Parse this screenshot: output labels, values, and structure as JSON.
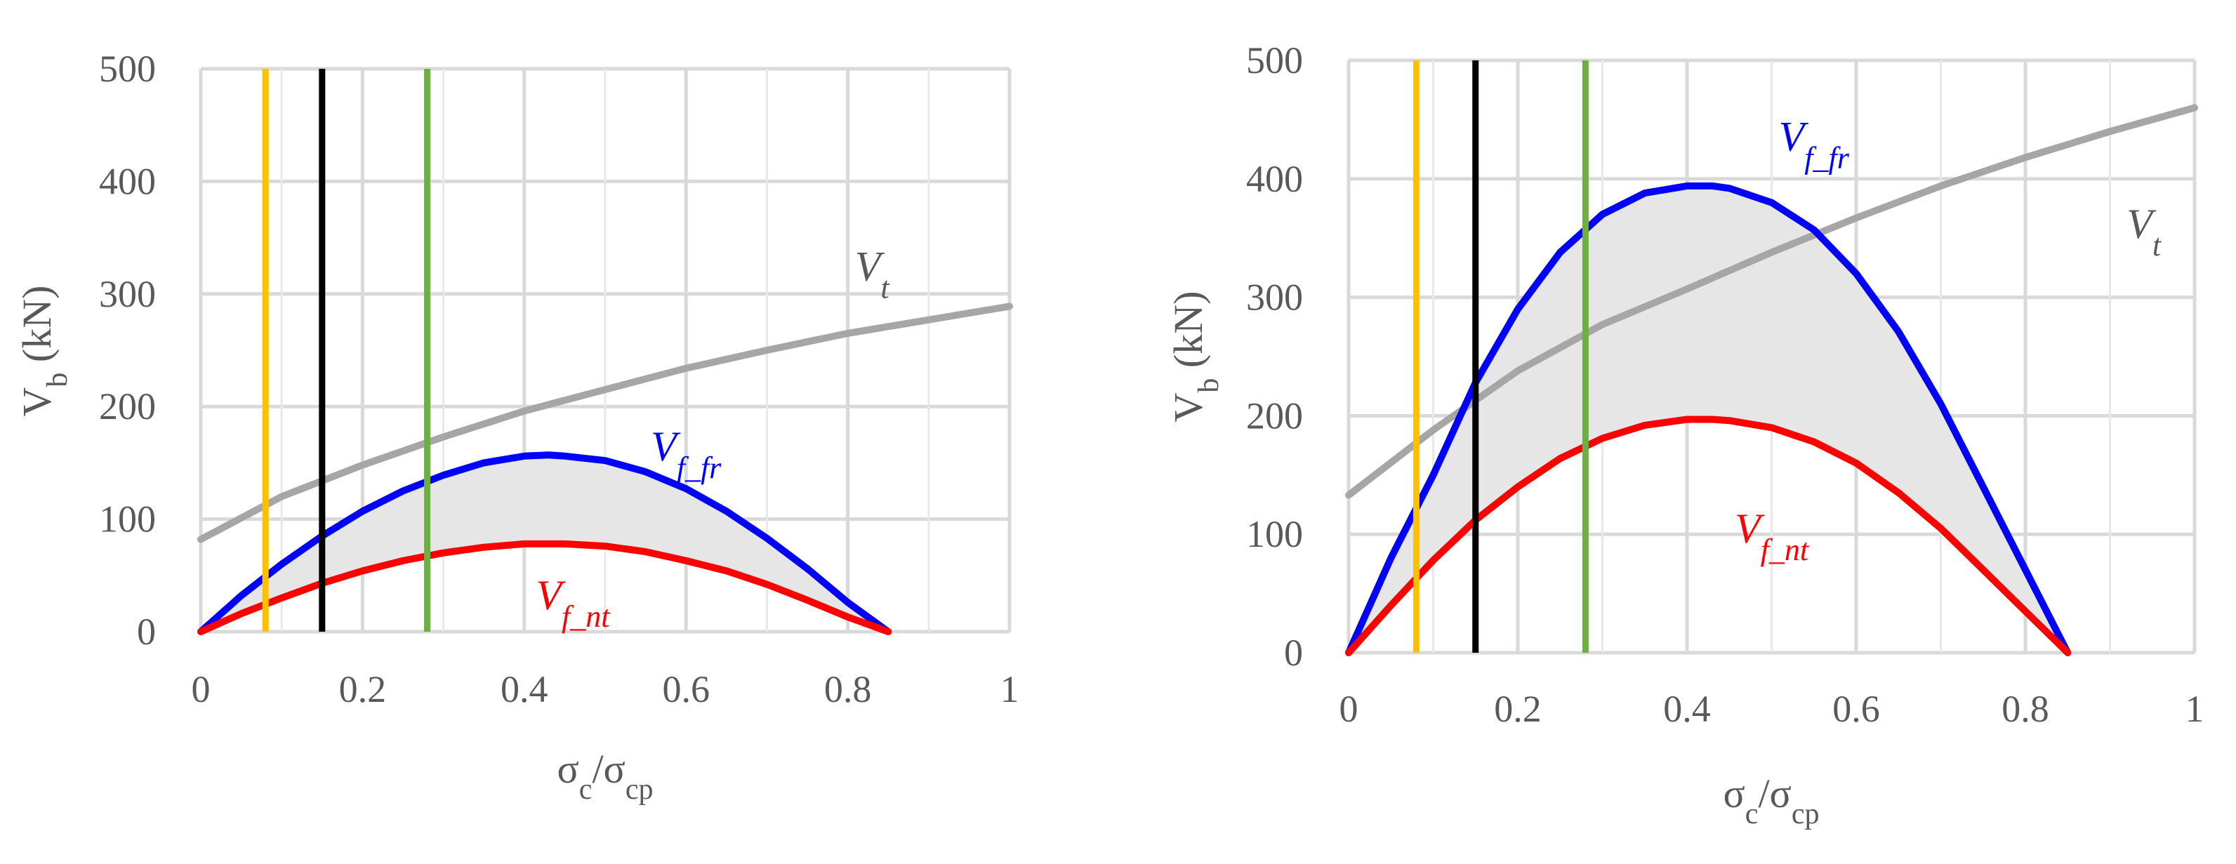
{
  "chart_data": [
    {
      "type": "line",
      "title": "",
      "xlabel": "σc/σcp",
      "xlabel_main": "σ",
      "xlabel_sub1": "c",
      "xlabel_sep": "/σ",
      "xlabel_sub2": "cp",
      "ylabel": "Vb (kN)",
      "ylabel_main": "V",
      "ylabel_sub": "b",
      "ylabel_unit": " (kN)",
      "xlim": [
        0,
        1
      ],
      "ylim": [
        0,
        500
      ],
      "xticks": [
        0,
        0.2,
        0.4,
        0.6,
        0.8,
        1
      ],
      "xtick_labels": [
        "0",
        "0.2",
        "0.4",
        "0.6",
        "0.8",
        "1"
      ],
      "yticks": [
        0,
        100,
        200,
        300,
        400,
        500
      ],
      "ytick_labels": [
        "0",
        "100",
        "200",
        "300",
        "400",
        "500"
      ],
      "grid": true,
      "series": [
        {
          "name": "Vt",
          "label_main": "V",
          "label_sub": "t",
          "color": "#a6a6a6",
          "x": [
            0,
            0.1,
            0.2,
            0.3,
            0.4,
            0.5,
            0.6,
            0.7,
            0.8,
            0.9,
            1.0
          ],
          "y": [
            82,
            120,
            148,
            173,
            196,
            215,
            234,
            250,
            265,
            277,
            289
          ],
          "label_at": [
            0.83,
            312
          ]
        },
        {
          "name": "Vf_fr",
          "label_main": "V",
          "label_sub": "f_fr",
          "color": "#0000ff",
          "x": [
            0,
            0.05,
            0.1,
            0.15,
            0.2,
            0.25,
            0.3,
            0.35,
            0.4,
            0.43,
            0.45,
            0.5,
            0.55,
            0.6,
            0.65,
            0.7,
            0.75,
            0.8,
            0.85
          ],
          "y": [
            0,
            32,
            60,
            85,
            107,
            125,
            139,
            150,
            156,
            157,
            156,
            152,
            142,
            127,
            107,
            83,
            56,
            26,
            0
          ],
          "label_at": [
            0.6,
            152
          ]
        },
        {
          "name": "Vf_nt",
          "label_main": "V",
          "label_sub": "f_nt",
          "color": "#ff0000",
          "x": [
            0,
            0.05,
            0.1,
            0.15,
            0.2,
            0.25,
            0.3,
            0.35,
            0.4,
            0.43,
            0.45,
            0.5,
            0.55,
            0.6,
            0.65,
            0.7,
            0.75,
            0.8,
            0.85
          ],
          "y": [
            0,
            16,
            30,
            43,
            54,
            63,
            70,
            75,
            78,
            78,
            78,
            76,
            71,
            63,
            54,
            42,
            28,
            13,
            0
          ],
          "label_at": [
            0.46,
            20
          ]
        }
      ],
      "vertical_lines": [
        {
          "x": 0.08,
          "color": "#ffc000"
        },
        {
          "x": 0.15,
          "color": "#000000"
        },
        {
          "x": 0.28,
          "color": "#70ad47"
        }
      ],
      "shaded_band": {
        "between": [
          "Vf_nt",
          "Vf_fr"
        ],
        "color": "#e6e6e6"
      }
    },
    {
      "type": "line",
      "title": "",
      "xlabel": "σc/σcp",
      "xlabel_main": "σ",
      "xlabel_sub1": "c",
      "xlabel_sep": "/σ",
      "xlabel_sub2": "cp",
      "ylabel": "Vb (kN)",
      "ylabel_main": "V",
      "ylabel_sub": "b",
      "ylabel_unit": " (kN)",
      "xlim": [
        0,
        1
      ],
      "ylim": [
        0,
        500
      ],
      "xticks": [
        0,
        0.2,
        0.4,
        0.6,
        0.8,
        1
      ],
      "xtick_labels": [
        "0",
        "0.2",
        "0.4",
        "0.6",
        "0.8",
        "1"
      ],
      "yticks": [
        0,
        100,
        200,
        300,
        400,
        500
      ],
      "ytick_labels": [
        "0",
        "100",
        "200",
        "300",
        "400",
        "500"
      ],
      "grid": true,
      "series": [
        {
          "name": "Vt",
          "label_main": "V",
          "label_sub": "t",
          "color": "#a6a6a6",
          "x": [
            0,
            0.1,
            0.2,
            0.3,
            0.4,
            0.5,
            0.6,
            0.7,
            0.8,
            0.9,
            1.0
          ],
          "y": [
            133,
            188,
            238,
            277,
            307,
            338,
            367,
            394,
            418,
            440,
            460
          ],
          "label_at": [
            0.94,
            350
          ]
        },
        {
          "name": "Vf_fr",
          "label_main": "V",
          "label_sub": "f_fr",
          "color": "#0000ff",
          "x": [
            0,
            0.05,
            0.1,
            0.15,
            0.2,
            0.25,
            0.3,
            0.35,
            0.4,
            0.43,
            0.45,
            0.5,
            0.55,
            0.6,
            0.65,
            0.7,
            0.75,
            0.8,
            0.85
          ],
          "y": [
            0,
            80,
            150,
            228,
            290,
            338,
            370,
            388,
            394,
            394,
            392,
            380,
            357,
            320,
            271,
            210,
            140,
            70,
            0
          ],
          "label_at": [
            0.55,
            424
          ]
        },
        {
          "name": "Vf_nt",
          "label_main": "V",
          "label_sub": "f_nt",
          "color": "#ff0000",
          "x": [
            0,
            0.05,
            0.1,
            0.15,
            0.2,
            0.25,
            0.3,
            0.35,
            0.4,
            0.43,
            0.45,
            0.5,
            0.55,
            0.6,
            0.65,
            0.7,
            0.75,
            0.8,
            0.85
          ],
          "y": [
            0,
            40,
            78,
            112,
            140,
            164,
            181,
            192,
            197,
            197,
            196,
            190,
            178,
            160,
            135,
            105,
            70,
            35,
            0
          ],
          "label_at": [
            0.5,
            93
          ]
        }
      ],
      "vertical_lines": [
        {
          "x": 0.08,
          "color": "#ffc000"
        },
        {
          "x": 0.15,
          "color": "#000000"
        },
        {
          "x": 0.28,
          "color": "#70ad47"
        }
      ],
      "shaded_band": {
        "between": [
          "Vf_nt",
          "Vf_fr"
        ],
        "color": "#e6e6e6"
      }
    }
  ]
}
